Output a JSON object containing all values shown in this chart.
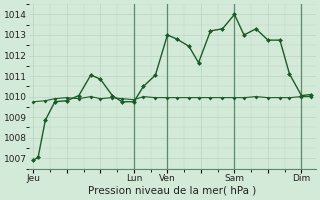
{
  "xlabel": "Pression niveau de la mer( hPa )",
  "bg_color": "#d4ead8",
  "plot_bg_color": "#d4ead8",
  "grid_color": "#b8d4c0",
  "line_color": "#1a5c28",
  "ylim": [
    1006.5,
    1014.5
  ],
  "yticks": [
    1007,
    1008,
    1009,
    1010,
    1011,
    1012,
    1013,
    1014
  ],
  "xtick_labels": [
    "Jeu",
    "",
    "",
    "Lun",
    "Ven",
    "",
    "Sam",
    "",
    "Dim"
  ],
  "xtick_positions": [
    0,
    14,
    28,
    42,
    56,
    70,
    84,
    98,
    112
  ],
  "xlim": [
    -2,
    118
  ],
  "vline_positions": [
    42,
    56,
    84,
    112
  ],
  "line1_x": [
    0,
    2,
    5,
    9,
    14,
    19,
    24,
    28,
    33,
    37,
    42,
    46,
    51,
    56,
    60,
    65,
    69,
    74,
    79,
    84,
    88,
    93,
    98,
    103,
    107,
    112,
    116
  ],
  "line1_y": [
    1006.9,
    1007.05,
    1008.85,
    1009.75,
    1009.8,
    1010.05,
    1011.05,
    1010.85,
    1010.05,
    1009.75,
    1009.75,
    1010.5,
    1011.05,
    1013.0,
    1012.8,
    1012.45,
    1011.65,
    1013.2,
    1013.3,
    1014.0,
    1013.0,
    1013.3,
    1012.75,
    1012.75,
    1011.1,
    1010.05,
    1010.1
  ],
  "line2_x": [
    0,
    5,
    9,
    14,
    19,
    24,
    28,
    33,
    37,
    42,
    46,
    51,
    56,
    60,
    65,
    69,
    74,
    79,
    84,
    88,
    93,
    98,
    103,
    107,
    112,
    116
  ],
  "line2_y": [
    1009.75,
    1009.8,
    1009.9,
    1009.95,
    1009.9,
    1010.0,
    1009.9,
    1009.95,
    1009.9,
    1009.85,
    1010.0,
    1009.95,
    1009.95,
    1009.95,
    1009.95,
    1009.95,
    1009.95,
    1009.95,
    1009.95,
    1009.95,
    1010.0,
    1009.95,
    1009.95,
    1009.95,
    1010.0,
    1010.0
  ],
  "xlabel_fontsize": 7.5,
  "tick_fontsize": 6.5,
  "marker": "D",
  "markersize1": 2.5,
  "markersize2": 2.0,
  "linewidth1": 1.0,
  "linewidth2": 0.8
}
